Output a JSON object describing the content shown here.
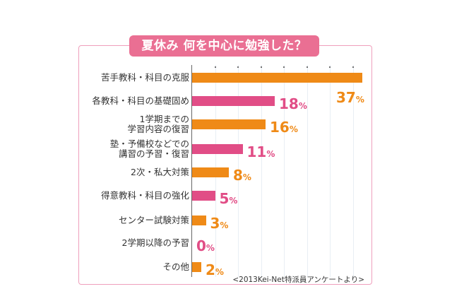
{
  "title": "夏休み 何を中心に勉強した？",
  "source": "<2013Kei-Net特派員アンケートより>",
  "colors": {
    "orange": "#ef8a17",
    "pink": "#e14d86",
    "frame": "#ef9fbc",
    "title_bg": "#ea6f93"
  },
  "rows": [
    {
      "label": "苦手教科・科目の克服",
      "value": "37",
      "unit": "%"
    },
    {
      "label": "各教科・科目の基礎固め",
      "value": "18",
      "unit": "%"
    },
    {
      "label": "1学期までの\n学習内容の復習",
      "value": "16",
      "unit": "%"
    },
    {
      "label": "塾・予備校などでの\n講習の予習・復習",
      "value": "11",
      "unit": "%"
    },
    {
      "label": "2次・私大対策",
      "value": "8",
      "unit": "%"
    },
    {
      "label": "得意教科・科目の強化",
      "value": "5",
      "unit": "%"
    },
    {
      "label": "センター試験対策",
      "value": "3",
      "unit": "%"
    },
    {
      "label": "2学期以降の予習",
      "value": "0",
      "unit": "%"
    },
    {
      "label": "その他",
      "value": "2",
      "unit": "%"
    }
  ],
  "chart_data": {
    "type": "bar",
    "orientation": "horizontal",
    "title": "夏休み 何を中心に勉強した？",
    "categories": [
      "苦手教科・科目の克服",
      "各教科・科目の基礎固め",
      "1学期までの学習内容の復習",
      "塾・予備校などでの講習の予習・復習",
      "2次・私大対策",
      "得意教科・科目の強化",
      "センター試験対策",
      "2学期以降の予習",
      "その他"
    ],
    "values": [
      37,
      18,
      16,
      11,
      8,
      5,
      3,
      0,
      2
    ],
    "unit": "%",
    "bar_colors": [
      "#ef8a17",
      "#e14d86",
      "#ef8a17",
      "#e14d86",
      "#ef8a17",
      "#e14d86",
      "#ef8a17",
      "#e14d86",
      "#ef8a17"
    ],
    "xlabel": "",
    "ylabel": "",
    "xlim": [
      0,
      40
    ],
    "tick_interval": 5,
    "grid": true,
    "annotation": "<2013Kei-Net特派員アンケートより>"
  }
}
